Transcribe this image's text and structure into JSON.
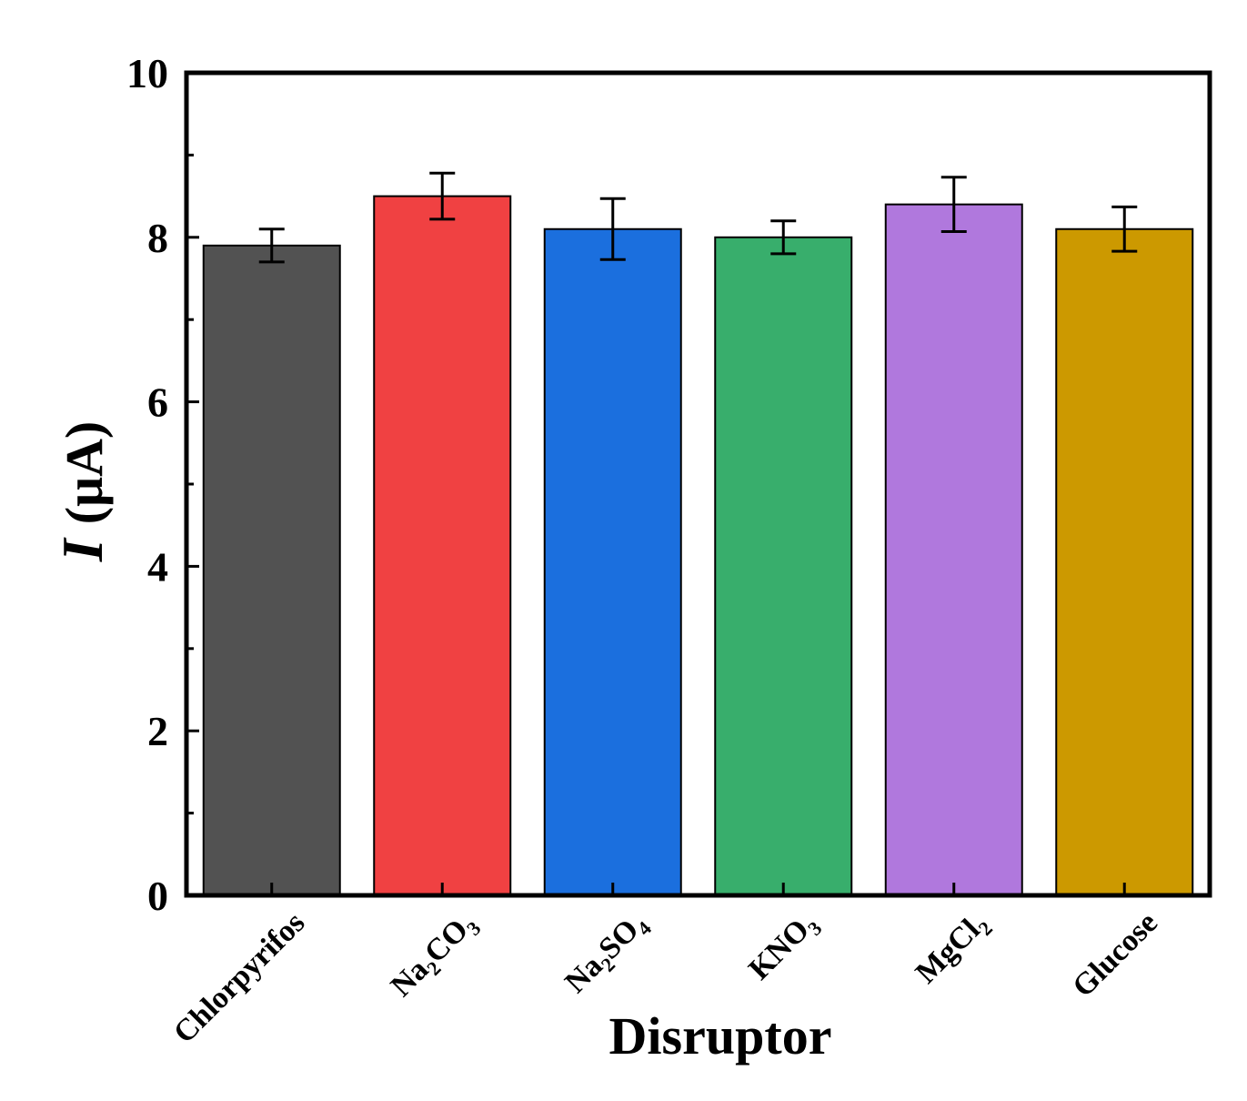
{
  "chart_data": {
    "type": "bar",
    "title": "",
    "xlabel": "Disruptor",
    "ylabel": "I (μA)",
    "ylabel_parts": {
      "italic": "I",
      "unit": "(μA)"
    },
    "ylim": [
      0,
      10
    ],
    "yticks": [
      0,
      2,
      4,
      6,
      8,
      10
    ],
    "grid": false,
    "legend": "none",
    "categories": [
      {
        "main": "Chlorpyrifos",
        "parts": [
          {
            "t": "Chlorpyrifos",
            "sub": false
          }
        ]
      },
      {
        "main": "Na2CO3",
        "parts": [
          {
            "t": "Na",
            "sub": false
          },
          {
            "t": "2",
            "sub": true
          },
          {
            "t": "CO",
            "sub": false
          },
          {
            "t": "3",
            "sub": true
          }
        ]
      },
      {
        "main": "Na2SO4",
        "parts": [
          {
            "t": "Na",
            "sub": false
          },
          {
            "t": "2",
            "sub": true
          },
          {
            "t": "SO",
            "sub": false
          },
          {
            "t": "4",
            "sub": true
          }
        ]
      },
      {
        "main": "KNO3",
        "parts": [
          {
            "t": "KNO",
            "sub": false
          },
          {
            "t": "3",
            "sub": true
          }
        ]
      },
      {
        "main": "MgCl2",
        "parts": [
          {
            "t": "MgCl",
            "sub": false
          },
          {
            "t": "2",
            "sub": true
          }
        ]
      },
      {
        "main": "Glucose",
        "parts": [
          {
            "t": "Glucose",
            "sub": false
          }
        ]
      }
    ],
    "values": [
      7.9,
      8.5,
      8.1,
      8.0,
      8.4,
      8.1
    ],
    "errors": [
      0.2,
      0.28,
      0.37,
      0.2,
      0.33,
      0.27
    ],
    "colors": [
      "#525252",
      "#f04142",
      "#1b6fde",
      "#38ae6c",
      "#b078dd",
      "#cc9900"
    ]
  }
}
